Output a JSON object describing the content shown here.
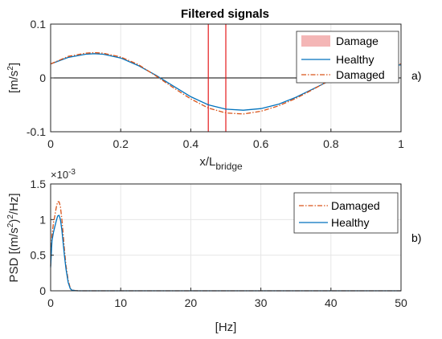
{
  "chart_data": [
    {
      "type": "line",
      "title": "Filtered signals",
      "xlabel_main": "x/L",
      "xlabel_sub": "bridge",
      "ylabel_main": "[m/s",
      "ylabel_sup": "2",
      "ylabel_end": "]",
      "panel_label": "a)",
      "xlim": [
        0,
        1
      ],
      "ylim": [
        -0.1,
        0.1
      ],
      "xticks": [
        0,
        0.2,
        0.4,
        0.6,
        0.8,
        1
      ],
      "xtick_labels": [
        "0",
        "0.2",
        "0.4",
        "0.6",
        "0.8",
        "1"
      ],
      "yticks": [
        -0.1,
        0,
        0.1
      ],
      "ytick_labels": [
        "-0.1",
        "0",
        "0.1"
      ],
      "grid": true,
      "legend_position": "top-right",
      "damage_lines_x": [
        0.45,
        0.5
      ],
      "series": [
        {
          "name": "Damage",
          "color": "#f4b6b6",
          "style": "patch"
        },
        {
          "name": "Healthy",
          "color": "#0072bd",
          "style": "solid",
          "x": [
            0,
            0.05,
            0.1,
            0.125,
            0.15,
            0.2,
            0.25,
            0.3,
            0.35,
            0.4,
            0.45,
            0.5,
            0.55,
            0.6,
            0.65,
            0.7,
            0.75,
            0.8,
            0.85,
            0.9,
            0.95,
            1
          ],
          "values": [
            0.026,
            0.038,
            0.044,
            0.045,
            0.044,
            0.037,
            0.023,
            0.005,
            -0.015,
            -0.035,
            -0.05,
            -0.058,
            -0.06,
            -0.057,
            -0.049,
            -0.036,
            -0.02,
            -0.004,
            0.01,
            0.02,
            0.024,
            0.024
          ]
        },
        {
          "name": "Damaged",
          "color": "#d95319",
          "style": "dashdot",
          "x": [
            0,
            0.05,
            0.1,
            0.125,
            0.15,
            0.2,
            0.25,
            0.3,
            0.35,
            0.4,
            0.45,
            0.5,
            0.55,
            0.6,
            0.65,
            0.7,
            0.75,
            0.8,
            0.85,
            0.9,
            0.95,
            1
          ],
          "values": [
            0.026,
            0.04,
            0.046,
            0.047,
            0.046,
            0.039,
            0.025,
            0.004,
            -0.018,
            -0.039,
            -0.056,
            -0.065,
            -0.067,
            -0.062,
            -0.052,
            -0.038,
            -0.021,
            -0.003,
            0.012,
            0.022,
            0.026,
            0.026
          ]
        }
      ]
    },
    {
      "type": "line",
      "xlabel": "[Hz]",
      "ylabel_main": "PSD [(m/s",
      "ylabel_sup1": "2",
      "ylabel_mid": ")",
      "ylabel_sup2": "2",
      "ylabel_end": "/Hz]",
      "exponent_base": "×10",
      "exponent_power": "-3",
      "panel_label": "b)",
      "xlim": [
        0,
        50
      ],
      "ylim": [
        0,
        1.5
      ],
      "xticks": [
        0,
        10,
        20,
        30,
        40,
        50
      ],
      "xtick_labels": [
        "0",
        "10",
        "20",
        "30",
        "40",
        "50"
      ],
      "yticks": [
        0,
        0.5,
        1,
        1.5
      ],
      "ytick_labels": [
        "0",
        "0.5",
        "1",
        "1.5"
      ],
      "grid": true,
      "legend_position": "top-right",
      "series": [
        {
          "name": "Damaged",
          "color": "#d95319",
          "style": "dashdot",
          "x": [
            0,
            0.2,
            0.4,
            0.6,
            0.8,
            1.0,
            1.2,
            1.4,
            1.6,
            1.8,
            2.0,
            2.2,
            2.5,
            2.8,
            3.0,
            3.5,
            4,
            5,
            10,
            20,
            30,
            40,
            50
          ],
          "values": [
            0.35,
            0.78,
            0.95,
            1.05,
            1.17,
            1.25,
            1.25,
            1.18,
            1.0,
            0.78,
            0.55,
            0.35,
            0.15,
            0.04,
            0.012,
            0.003,
            0.0,
            0.0,
            0.0,
            0.0,
            0.0,
            0.0,
            0.0
          ]
        },
        {
          "name": "Healthy",
          "color": "#0072bd",
          "style": "solid",
          "x": [
            0,
            0.2,
            0.4,
            0.6,
            0.8,
            1.0,
            1.2,
            1.4,
            1.6,
            1.8,
            2.0,
            2.2,
            2.5,
            2.8,
            3.0,
            3.5,
            4,
            5,
            10,
            20,
            30,
            40,
            50
          ],
          "values": [
            0.33,
            0.7,
            0.82,
            0.9,
            0.98,
            1.05,
            1.06,
            1.0,
            0.85,
            0.66,
            0.47,
            0.3,
            0.12,
            0.03,
            0.01,
            0.002,
            0.0,
            0.0,
            0.0,
            0.0,
            0.0,
            0.0,
            0.0
          ]
        }
      ]
    }
  ]
}
